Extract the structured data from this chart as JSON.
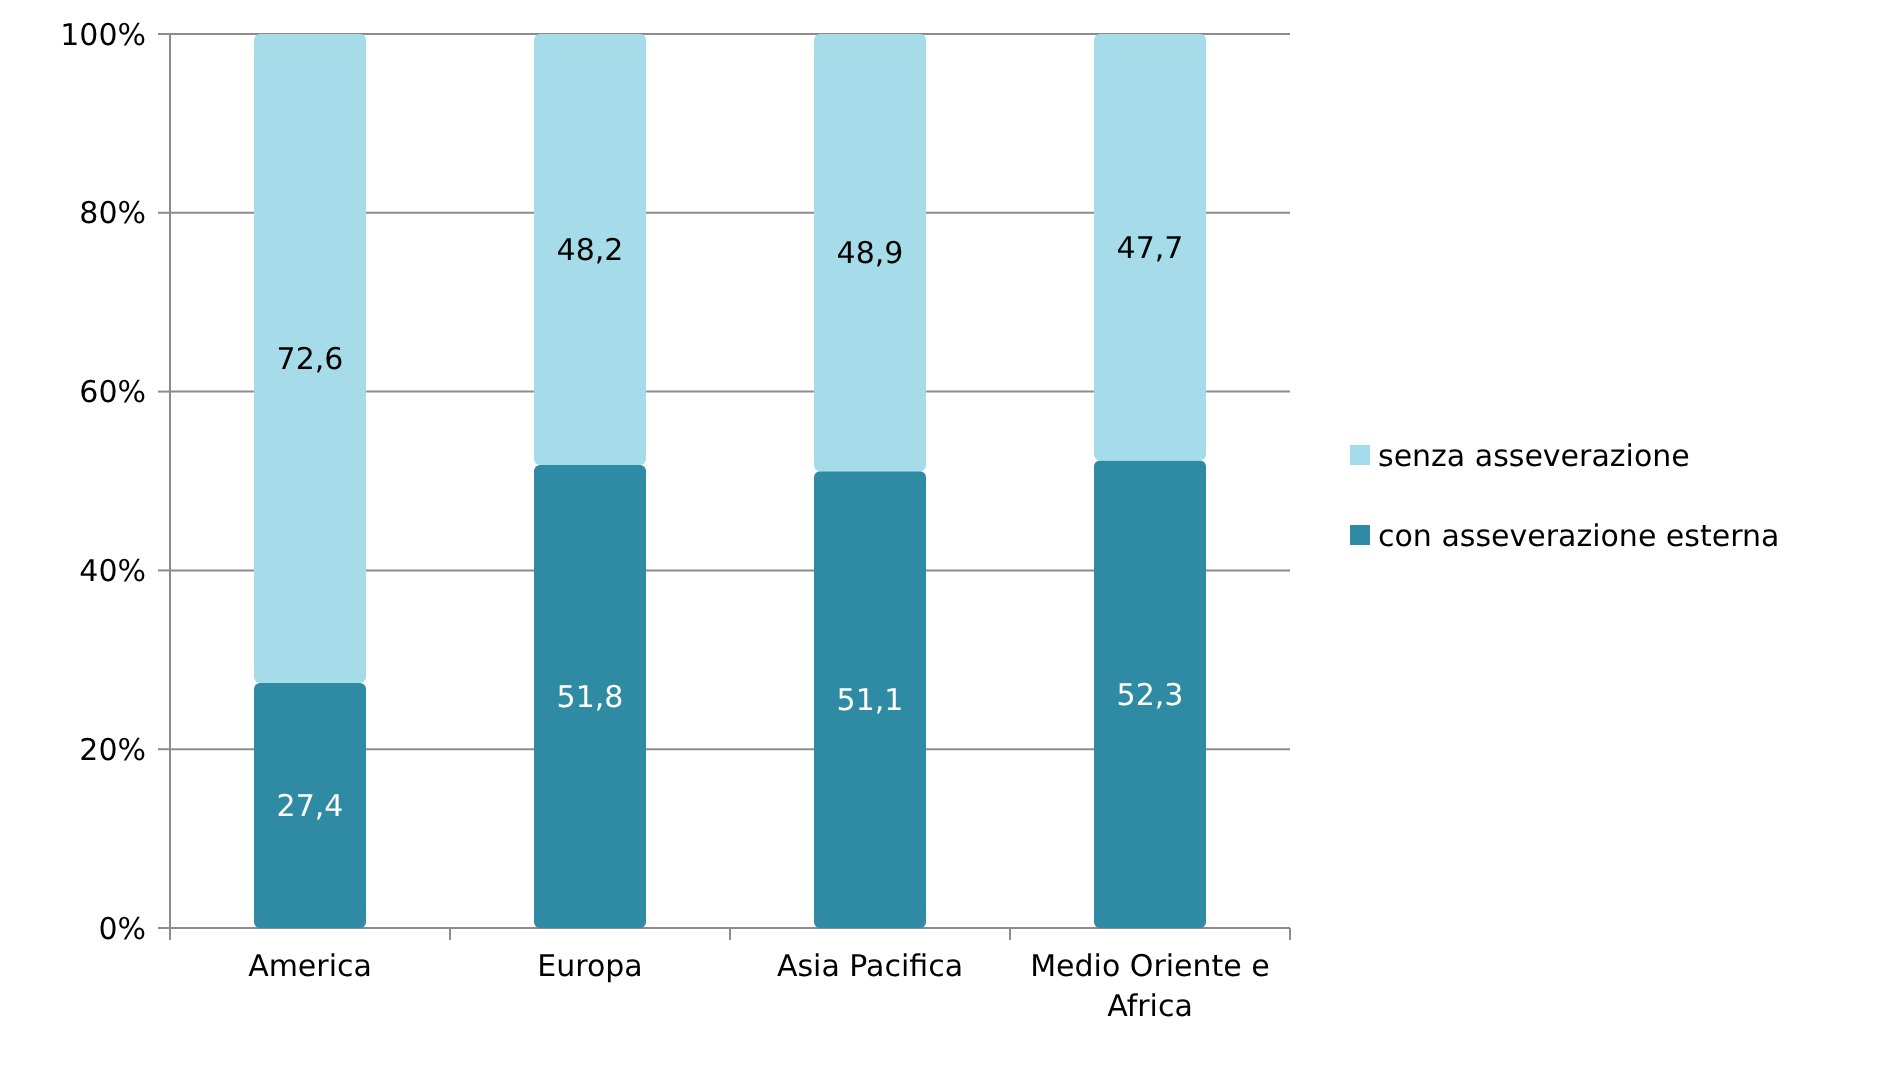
{
  "chart_data": {
    "type": "bar",
    "stacked": true,
    "categories": [
      "America",
      "Europa",
      "Asia Pacifica",
      "Medio Oriente e Africa"
    ],
    "series": [
      {
        "name": "con asseverazione esterna",
        "color": "#2f8aa3",
        "values": [
          27.4,
          51.8,
          51.1,
          52.3
        ],
        "value_labels": [
          "27,4",
          "51,8",
          "51,1",
          "52,3"
        ]
      },
      {
        "name": "senza asseverazione",
        "color": "#a6dce9",
        "values": [
          72.6,
          48.2,
          48.9,
          47.7
        ],
        "value_labels": [
          "72,6",
          "48,2",
          "48,9",
          "47,7"
        ]
      }
    ],
    "ylim": [
      0,
      100
    ],
    "yticks": [
      {
        "value": 0,
        "label": "0%"
      },
      {
        "value": 20,
        "label": "20%"
      },
      {
        "value": 40,
        "label": "40%"
      },
      {
        "value": 60,
        "label": "60%"
      },
      {
        "value": 80,
        "label": "80%"
      },
      {
        "value": 100,
        "label": "100%"
      }
    ],
    "grid": "y",
    "legend": "right"
  }
}
